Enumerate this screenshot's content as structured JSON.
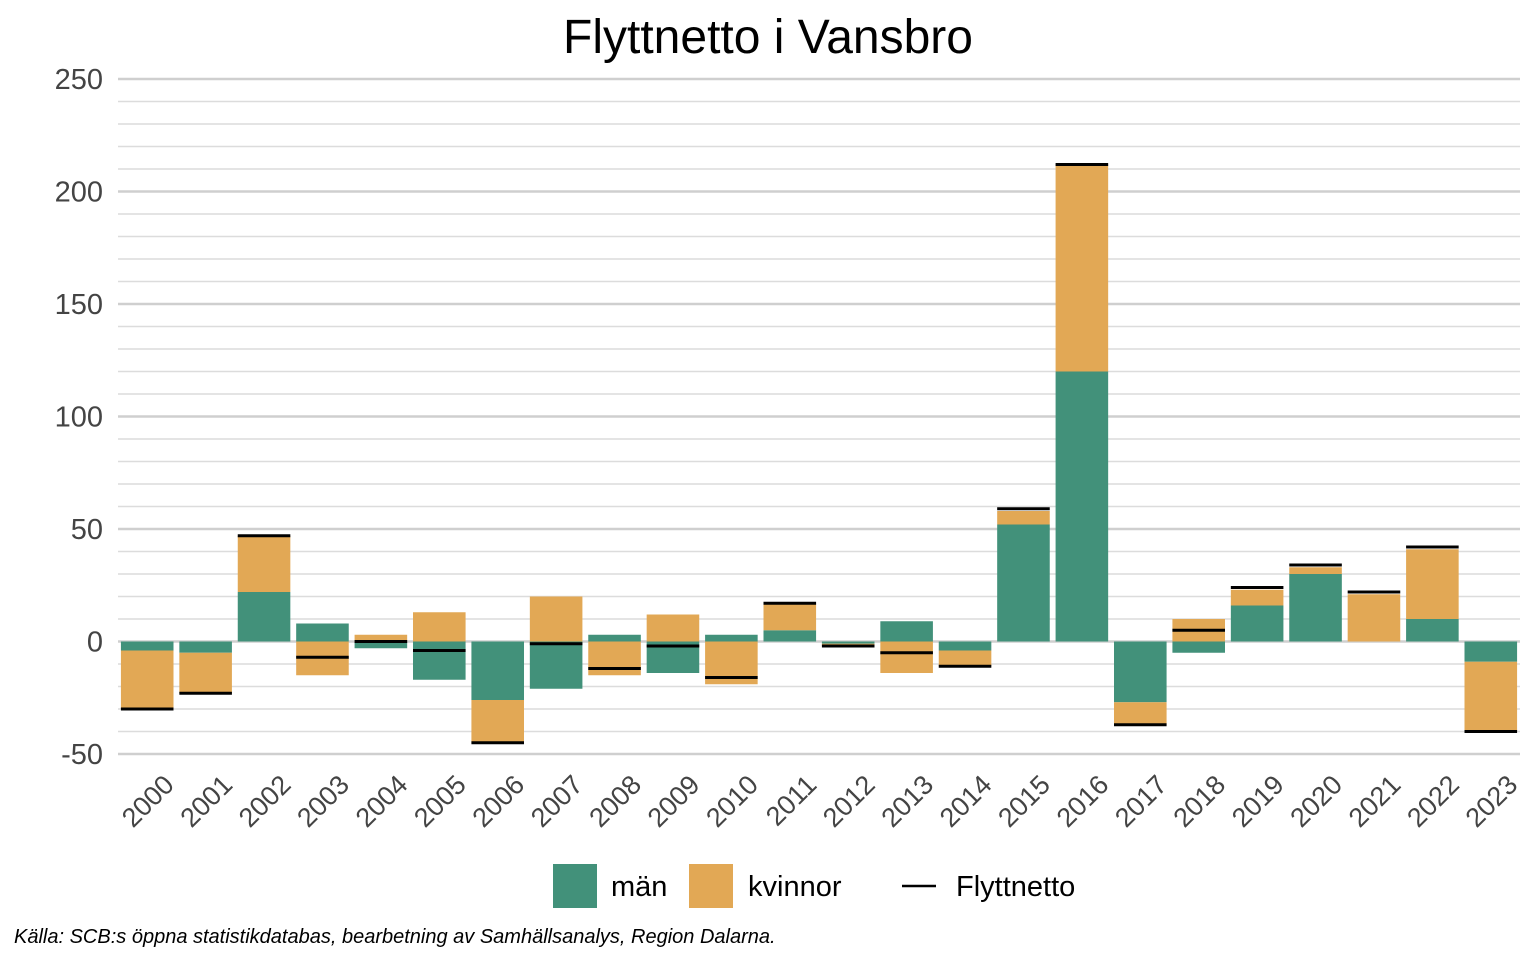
{
  "chart_data": {
    "type": "bar",
    "title": "Flyttnetto i Vansbro",
    "xlabel": "",
    "ylabel": "",
    "ylim": [
      -50,
      250
    ],
    "y_ticks": [
      "250",
      "200",
      "150",
      "100",
      "50",
      "0",
      "-50"
    ],
    "y_tick_values": [
      250,
      200,
      150,
      100,
      50,
      0,
      -50
    ],
    "stacked": true,
    "grid": true,
    "legend_position": "bottom",
    "categories": [
      "2000",
      "2001",
      "2002",
      "2003",
      "2004",
      "2005",
      "2006",
      "2007",
      "2008",
      "2009",
      "2010",
      "2011",
      "2012",
      "2013",
      "2014",
      "2015",
      "2016",
      "2017",
      "2018",
      "2019",
      "2020",
      "2021",
      "2022",
      "2023"
    ],
    "series": [
      {
        "name": "män",
        "color": "#42917a",
        "values": [
          -4,
          -5,
          22,
          8,
          -3,
          -17,
          -26,
          -21,
          3,
          -14,
          3,
          5,
          -1,
          9,
          -4,
          52,
          120,
          -27,
          -5,
          16,
          30,
          0,
          10,
          -9
        ]
      },
      {
        "name": "kvinnor",
        "color": "#e2a855",
        "values": [
          -26,
          -18,
          25,
          -15,
          3,
          13,
          -19,
          20,
          -15,
          12,
          -19,
          12,
          -1,
          -14,
          -7,
          6,
          92,
          -10,
          10,
          7,
          3,
          21,
          31,
          -31
        ]
      }
    ],
    "net": {
      "name": "Flyttnetto",
      "color": "#000000",
      "values": [
        -30,
        -23,
        47,
        -7,
        0,
        -4,
        -45,
        -1,
        -12,
        -2,
        -16,
        17,
        -2,
        -5,
        -11,
        59,
        212,
        -37,
        5,
        24,
        34,
        22,
        42,
        -40
      ]
    }
  },
  "caption": "Källa: SCB:s öppna statistikdatabas, bearbetning av Samhällsanalys, Region Dalarna."
}
